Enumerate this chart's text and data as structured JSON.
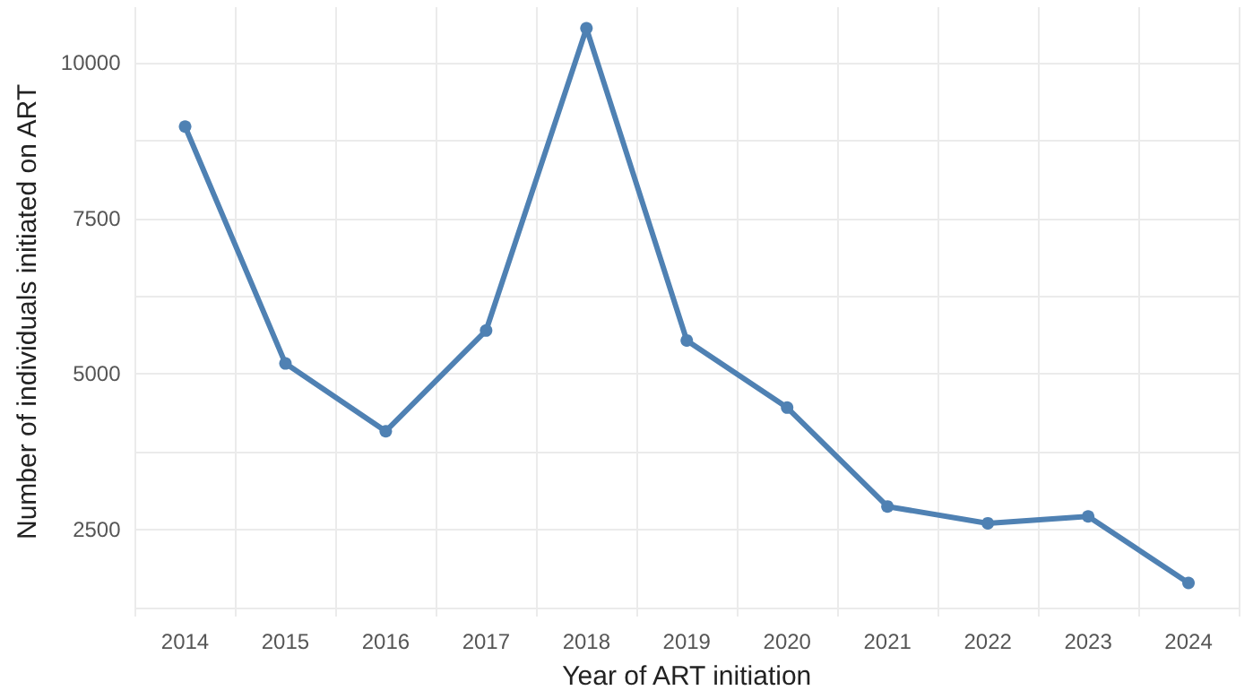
{
  "chart_data": {
    "type": "line",
    "xlabel": "Year of ART initiation",
    "ylabel": "Number of individuals initiated on ART",
    "categories": [
      "2014",
      "2015",
      "2016",
      "2017",
      "2018",
      "2019",
      "2020",
      "2021",
      "2022",
      "2023",
      "2024"
    ],
    "series": [
      {
        "color": "#4f81b3",
        "values": [
          8980,
          5170,
          4080,
          5700,
          10560,
          5540,
          4460,
          2870,
          2600,
          2710,
          1640
        ]
      }
    ],
    "ylim": [
      1100,
      10900
    ],
    "yticks": [
      {
        "value": 1250,
        "label": null
      },
      2500,
      {
        "value": 3750,
        "label": null
      },
      5000,
      {
        "value": 6250,
        "label": null
      },
      7500,
      {
        "value": 8750,
        "label": null
      },
      10000
    ],
    "grid": true,
    "marker": "circle",
    "line_style": "solid"
  }
}
